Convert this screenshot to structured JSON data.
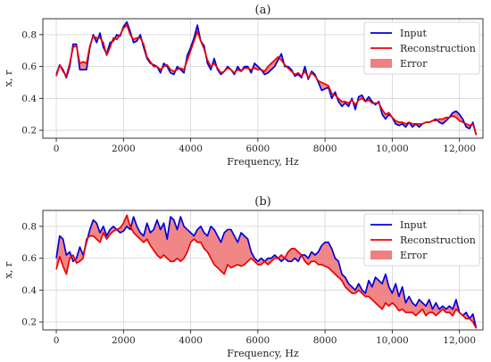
{
  "chart_data": [
    {
      "type": "line",
      "title": "(a)",
      "xlabel": "Frequency, Hz",
      "ylabel": "x, r",
      "xlim": [
        -400,
        12700
      ],
      "ylim": [
        0.15,
        0.9
      ],
      "xticks": [
        0,
        2000,
        4000,
        6000,
        8000,
        10000,
        12000
      ],
      "xtick_labels": [
        "0",
        "2000",
        "4000",
        "6000",
        "8000",
        "10,000",
        "12,000"
      ],
      "yticks": [
        0.2,
        0.4,
        0.6,
        0.8
      ],
      "ytick_labels": [
        "0.2",
        "0.4",
        "0.6",
        "0.8"
      ],
      "grid": true,
      "legend": {
        "placement": "top-right",
        "entries": [
          "Input",
          "Reconstruction",
          "Error"
        ]
      },
      "x": [
        0,
        100,
        200,
        300,
        400,
        500,
        600,
        700,
        800,
        900,
        1000,
        1100,
        1200,
        1300,
        1400,
        1500,
        1600,
        1700,
        1800,
        1900,
        2000,
        2100,
        2200,
        2300,
        2400,
        2500,
        2600,
        2700,
        2800,
        2900,
        3000,
        3100,
        3200,
        3300,
        3400,
        3500,
        3600,
        3700,
        3800,
        3900,
        4000,
        4100,
        4200,
        4300,
        4400,
        4500,
        4600,
        4700,
        4800,
        4900,
        5000,
        5100,
        5200,
        5300,
        5400,
        5500,
        5600,
        5700,
        5800,
        5900,
        6000,
        6100,
        6200,
        6300,
        6400,
        6500,
        6600,
        6700,
        6800,
        6900,
        7000,
        7100,
        7200,
        7300,
        7400,
        7500,
        7600,
        7700,
        7800,
        7900,
        8000,
        8100,
        8200,
        8300,
        8400,
        8500,
        8600,
        8700,
        8800,
        8900,
        9000,
        9100,
        9200,
        9300,
        9400,
        9500,
        9600,
        9700,
        9800,
        9900,
        10000,
        10100,
        10200,
        10300,
        10400,
        10500,
        10600,
        10700,
        10800,
        10900,
        11000,
        11100,
        11200,
        11300,
        11400,
        11500,
        11600,
        11700,
        11800,
        11900,
        12000,
        12100,
        12200,
        12300,
        12400,
        12500
      ],
      "series": [
        {
          "name": "Input",
          "color": "#0000dd",
          "values": [
            0.55,
            0.61,
            0.58,
            0.53,
            0.6,
            0.74,
            0.74,
            0.58,
            0.58,
            0.58,
            0.72,
            0.8,
            0.75,
            0.81,
            0.72,
            0.68,
            0.75,
            0.76,
            0.8,
            0.79,
            0.85,
            0.88,
            0.82,
            0.75,
            0.76,
            0.8,
            0.72,
            0.65,
            0.62,
            0.61,
            0.6,
            0.56,
            0.62,
            0.6,
            0.56,
            0.55,
            0.6,
            0.58,
            0.56,
            0.67,
            0.72,
            0.78,
            0.86,
            0.76,
            0.73,
            0.62,
            0.58,
            0.65,
            0.58,
            0.55,
            0.57,
            0.6,
            0.58,
            0.55,
            0.6,
            0.57,
            0.6,
            0.6,
            0.56,
            0.62,
            0.6,
            0.58,
            0.55,
            0.56,
            0.58,
            0.6,
            0.64,
            0.68,
            0.6,
            0.6,
            0.58,
            0.54,
            0.55,
            0.53,
            0.6,
            0.52,
            0.57,
            0.55,
            0.5,
            0.45,
            0.46,
            0.47,
            0.4,
            0.44,
            0.38,
            0.35,
            0.37,
            0.35,
            0.4,
            0.33,
            0.41,
            0.42,
            0.38,
            0.41,
            0.38,
            0.36,
            0.38,
            0.3,
            0.27,
            0.3,
            0.28,
            0.24,
            0.23,
            0.24,
            0.22,
            0.25,
            0.22,
            0.24,
            0.22,
            0.24,
            0.25,
            0.25,
            0.26,
            0.27,
            0.25,
            0.24,
            0.26,
            0.28,
            0.31,
            0.32,
            0.3,
            0.27,
            0.22,
            0.21,
            0.25,
            0.17
          ]
        },
        {
          "name": "Reconstruction",
          "color": "#ee0000",
          "values": [
            0.54,
            0.61,
            0.57,
            0.54,
            0.62,
            0.72,
            0.73,
            0.62,
            0.63,
            0.62,
            0.73,
            0.79,
            0.78,
            0.78,
            0.75,
            0.67,
            0.72,
            0.78,
            0.77,
            0.8,
            0.84,
            0.86,
            0.8,
            0.77,
            0.78,
            0.78,
            0.74,
            0.66,
            0.63,
            0.6,
            0.6,
            0.58,
            0.6,
            0.61,
            0.58,
            0.57,
            0.58,
            0.59,
            0.58,
            0.64,
            0.7,
            0.76,
            0.82,
            0.76,
            0.71,
            0.64,
            0.6,
            0.62,
            0.59,
            0.56,
            0.57,
            0.59,
            0.58,
            0.56,
            0.58,
            0.57,
            0.59,
            0.59,
            0.58,
            0.59,
            0.58,
            0.58,
            0.57,
            0.6,
            0.62,
            0.64,
            0.66,
            0.64,
            0.61,
            0.59,
            0.57,
            0.55,
            0.56,
            0.54,
            0.57,
            0.53,
            0.56,
            0.54,
            0.51,
            0.5,
            0.49,
            0.48,
            0.43,
            0.42,
            0.4,
            0.38,
            0.38,
            0.37,
            0.39,
            0.36,
            0.39,
            0.4,
            0.38,
            0.39,
            0.37,
            0.37,
            0.37,
            0.33,
            0.3,
            0.31,
            0.28,
            0.26,
            0.25,
            0.25,
            0.24,
            0.25,
            0.24,
            0.24,
            0.24,
            0.24,
            0.25,
            0.25,
            0.26,
            0.26,
            0.27,
            0.27,
            0.28,
            0.28,
            0.29,
            0.28,
            0.26,
            0.25,
            0.24,
            0.23,
            0.24,
            0.17
          ]
        }
      ]
    },
    {
      "type": "line",
      "title": "(b)",
      "xlabel": "Frequency, Hz",
      "ylabel": "x, r",
      "xlim": [
        -400,
        12700
      ],
      "ylim": [
        0.15,
        0.9
      ],
      "xticks": [
        0,
        2000,
        4000,
        6000,
        8000,
        10000,
        12000
      ],
      "xtick_labels": [
        "0",
        "2000",
        "4000",
        "6000",
        "8000",
        "10,000",
        "12,000"
      ],
      "yticks": [
        0.2,
        0.4,
        0.6,
        0.8
      ],
      "ytick_labels": [
        "0.2",
        "0.4",
        "0.6",
        "0.8"
      ],
      "grid": true,
      "legend": {
        "placement": "top-right",
        "entries": [
          "Input",
          "Reconstruction",
          "Error"
        ]
      },
      "x": [
        0,
        100,
        200,
        300,
        400,
        500,
        600,
        700,
        800,
        900,
        1000,
        1100,
        1200,
        1300,
        1400,
        1500,
        1600,
        1700,
        1800,
        1900,
        2000,
        2100,
        2200,
        2300,
        2400,
        2500,
        2600,
        2700,
        2800,
        2900,
        3000,
        3100,
        3200,
        3300,
        3400,
        3500,
        3600,
        3700,
        3800,
        3900,
        4000,
        4100,
        4200,
        4300,
        4400,
        4500,
        4600,
        4700,
        4800,
        4900,
        5000,
        5100,
        5200,
        5300,
        5400,
        5500,
        5600,
        5700,
        5800,
        5900,
        6000,
        6100,
        6200,
        6300,
        6400,
        6500,
        6600,
        6700,
        6800,
        6900,
        7000,
        7100,
        7200,
        7300,
        7400,
        7500,
        7600,
        7700,
        7800,
        7900,
        8000,
        8100,
        8200,
        8300,
        8400,
        8500,
        8600,
        8700,
        8800,
        8900,
        9000,
        9100,
        9200,
        9300,
        9400,
        9500,
        9600,
        9700,
        9800,
        9900,
        10000,
        10100,
        10200,
        10300,
        10400,
        10500,
        10600,
        10700,
        10800,
        10900,
        11000,
        11100,
        11200,
        11300,
        11400,
        11500,
        11600,
        11700,
        11800,
        11900,
        12000,
        12100,
        12200,
        12300,
        12400,
        12500
      ],
      "series": [
        {
          "name": "Input",
          "color": "#0000dd",
          "values": [
            0.6,
            0.74,
            0.72,
            0.62,
            0.64,
            0.58,
            0.6,
            0.67,
            0.62,
            0.7,
            0.78,
            0.84,
            0.82,
            0.76,
            0.8,
            0.74,
            0.78,
            0.8,
            0.78,
            0.76,
            0.77,
            0.8,
            0.78,
            0.86,
            0.8,
            0.76,
            0.74,
            0.82,
            0.76,
            0.78,
            0.84,
            0.78,
            0.82,
            0.72,
            0.86,
            0.84,
            0.78,
            0.86,
            0.8,
            0.78,
            0.76,
            0.74,
            0.78,
            0.8,
            0.76,
            0.74,
            0.8,
            0.78,
            0.74,
            0.7,
            0.76,
            0.78,
            0.78,
            0.74,
            0.7,
            0.76,
            0.74,
            0.72,
            0.64,
            0.6,
            0.58,
            0.6,
            0.58,
            0.6,
            0.6,
            0.62,
            0.6,
            0.58,
            0.6,
            0.58,
            0.58,
            0.6,
            0.58,
            0.62,
            0.62,
            0.6,
            0.64,
            0.62,
            0.64,
            0.68,
            0.7,
            0.7,
            0.66,
            0.6,
            0.58,
            0.5,
            0.48,
            0.44,
            0.42,
            0.4,
            0.44,
            0.4,
            0.38,
            0.46,
            0.42,
            0.48,
            0.46,
            0.44,
            0.5,
            0.42,
            0.38,
            0.44,
            0.36,
            0.42,
            0.32,
            0.36,
            0.32,
            0.3,
            0.34,
            0.32,
            0.3,
            0.34,
            0.28,
            0.32,
            0.28,
            0.3,
            0.28,
            0.3,
            0.28,
            0.34,
            0.26,
            0.24,
            0.26,
            0.22,
            0.25,
            0.16
          ]
        },
        {
          "name": "Reconstruction",
          "color": "#ee0000",
          "values": [
            0.53,
            0.61,
            0.55,
            0.5,
            0.6,
            0.62,
            0.57,
            0.58,
            0.6,
            0.72,
            0.74,
            0.74,
            0.72,
            0.7,
            0.76,
            0.72,
            0.75,
            0.77,
            0.78,
            0.79,
            0.82,
            0.87,
            0.8,
            0.76,
            0.74,
            0.72,
            0.7,
            0.72,
            0.68,
            0.65,
            0.62,
            0.6,
            0.62,
            0.6,
            0.58,
            0.58,
            0.6,
            0.58,
            0.6,
            0.64,
            0.7,
            0.72,
            0.7,
            0.7,
            0.66,
            0.64,
            0.6,
            0.56,
            0.54,
            0.52,
            0.5,
            0.56,
            0.54,
            0.55,
            0.56,
            0.55,
            0.56,
            0.58,
            0.6,
            0.58,
            0.56,
            0.56,
            0.58,
            0.56,
            0.58,
            0.6,
            0.6,
            0.62,
            0.6,
            0.64,
            0.66,
            0.66,
            0.64,
            0.62,
            0.58,
            0.56,
            0.58,
            0.58,
            0.56,
            0.56,
            0.55,
            0.54,
            0.52,
            0.5,
            0.48,
            0.46,
            0.42,
            0.4,
            0.38,
            0.38,
            0.4,
            0.38,
            0.36,
            0.36,
            0.34,
            0.32,
            0.3,
            0.28,
            0.32,
            0.3,
            0.32,
            0.3,
            0.27,
            0.28,
            0.26,
            0.26,
            0.26,
            0.24,
            0.26,
            0.28,
            0.24,
            0.26,
            0.26,
            0.24,
            0.26,
            0.28,
            0.26,
            0.26,
            0.24,
            0.28,
            0.26,
            0.24,
            0.22,
            0.22,
            0.2,
            0.16
          ]
        }
      ]
    }
  ],
  "error_fill_color": "#f08080"
}
